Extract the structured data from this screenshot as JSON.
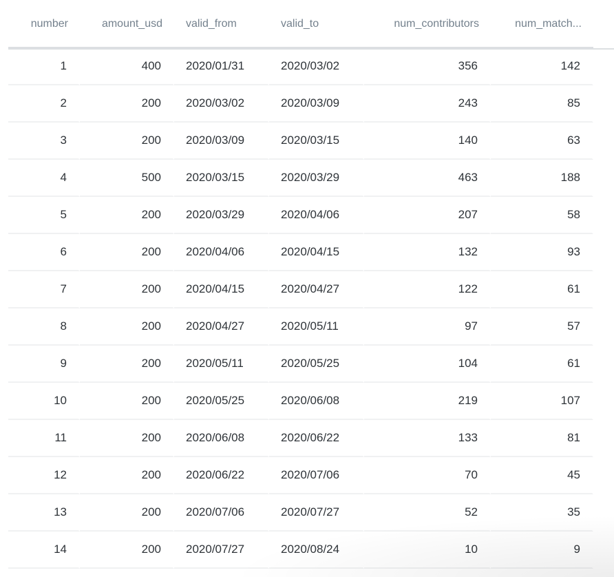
{
  "table": {
    "columns": [
      {
        "key": "number",
        "label": "number",
        "align": "r"
      },
      {
        "key": "amount_usd",
        "label": "amount_usd",
        "align": "r"
      },
      {
        "key": "valid_from",
        "label": "valid_from",
        "align": "l"
      },
      {
        "key": "valid_to",
        "label": "valid_to",
        "align": "l"
      },
      {
        "key": "num_contributors",
        "label": "num_contributors",
        "align": "r"
      },
      {
        "key": "num_match",
        "label": "num_match...",
        " align": "r"
      }
    ],
    "rows": [
      [
        "1",
        "400",
        "2020/01/31",
        "2020/03/02",
        "356",
        "142"
      ],
      [
        "2",
        "200",
        "2020/03/02",
        "2020/03/09",
        "243",
        "85"
      ],
      [
        "3",
        "200",
        "2020/03/09",
        "2020/03/15",
        "140",
        "63"
      ],
      [
        "4",
        "500",
        "2020/03/15",
        "2020/03/29",
        "463",
        "188"
      ],
      [
        "5",
        "200",
        "2020/03/29",
        "2020/04/06",
        "207",
        "58"
      ],
      [
        "6",
        "200",
        "2020/04/06",
        "2020/04/15",
        "132",
        "93"
      ],
      [
        "7",
        "200",
        "2020/04/15",
        "2020/04/27",
        "122",
        "61"
      ],
      [
        "8",
        "200",
        "2020/04/27",
        "2020/05/11",
        "97",
        "57"
      ],
      [
        "9",
        "200",
        "2020/05/11",
        "2020/05/25",
        "104",
        "61"
      ],
      [
        "10",
        "200",
        "2020/05/25",
        "2020/06/08",
        "219",
        "107"
      ],
      [
        "11",
        "200",
        "2020/06/08",
        "2020/06/22",
        "133",
        "81"
      ],
      [
        "12",
        "200",
        "2020/06/22",
        "2020/07/06",
        "70",
        "45"
      ],
      [
        "13",
        "200",
        "2020/07/06",
        "2020/07/27",
        "52",
        "35"
      ],
      [
        "14",
        "200",
        "2020/07/27",
        "2020/08/24",
        "10",
        "9"
      ]
    ]
  }
}
